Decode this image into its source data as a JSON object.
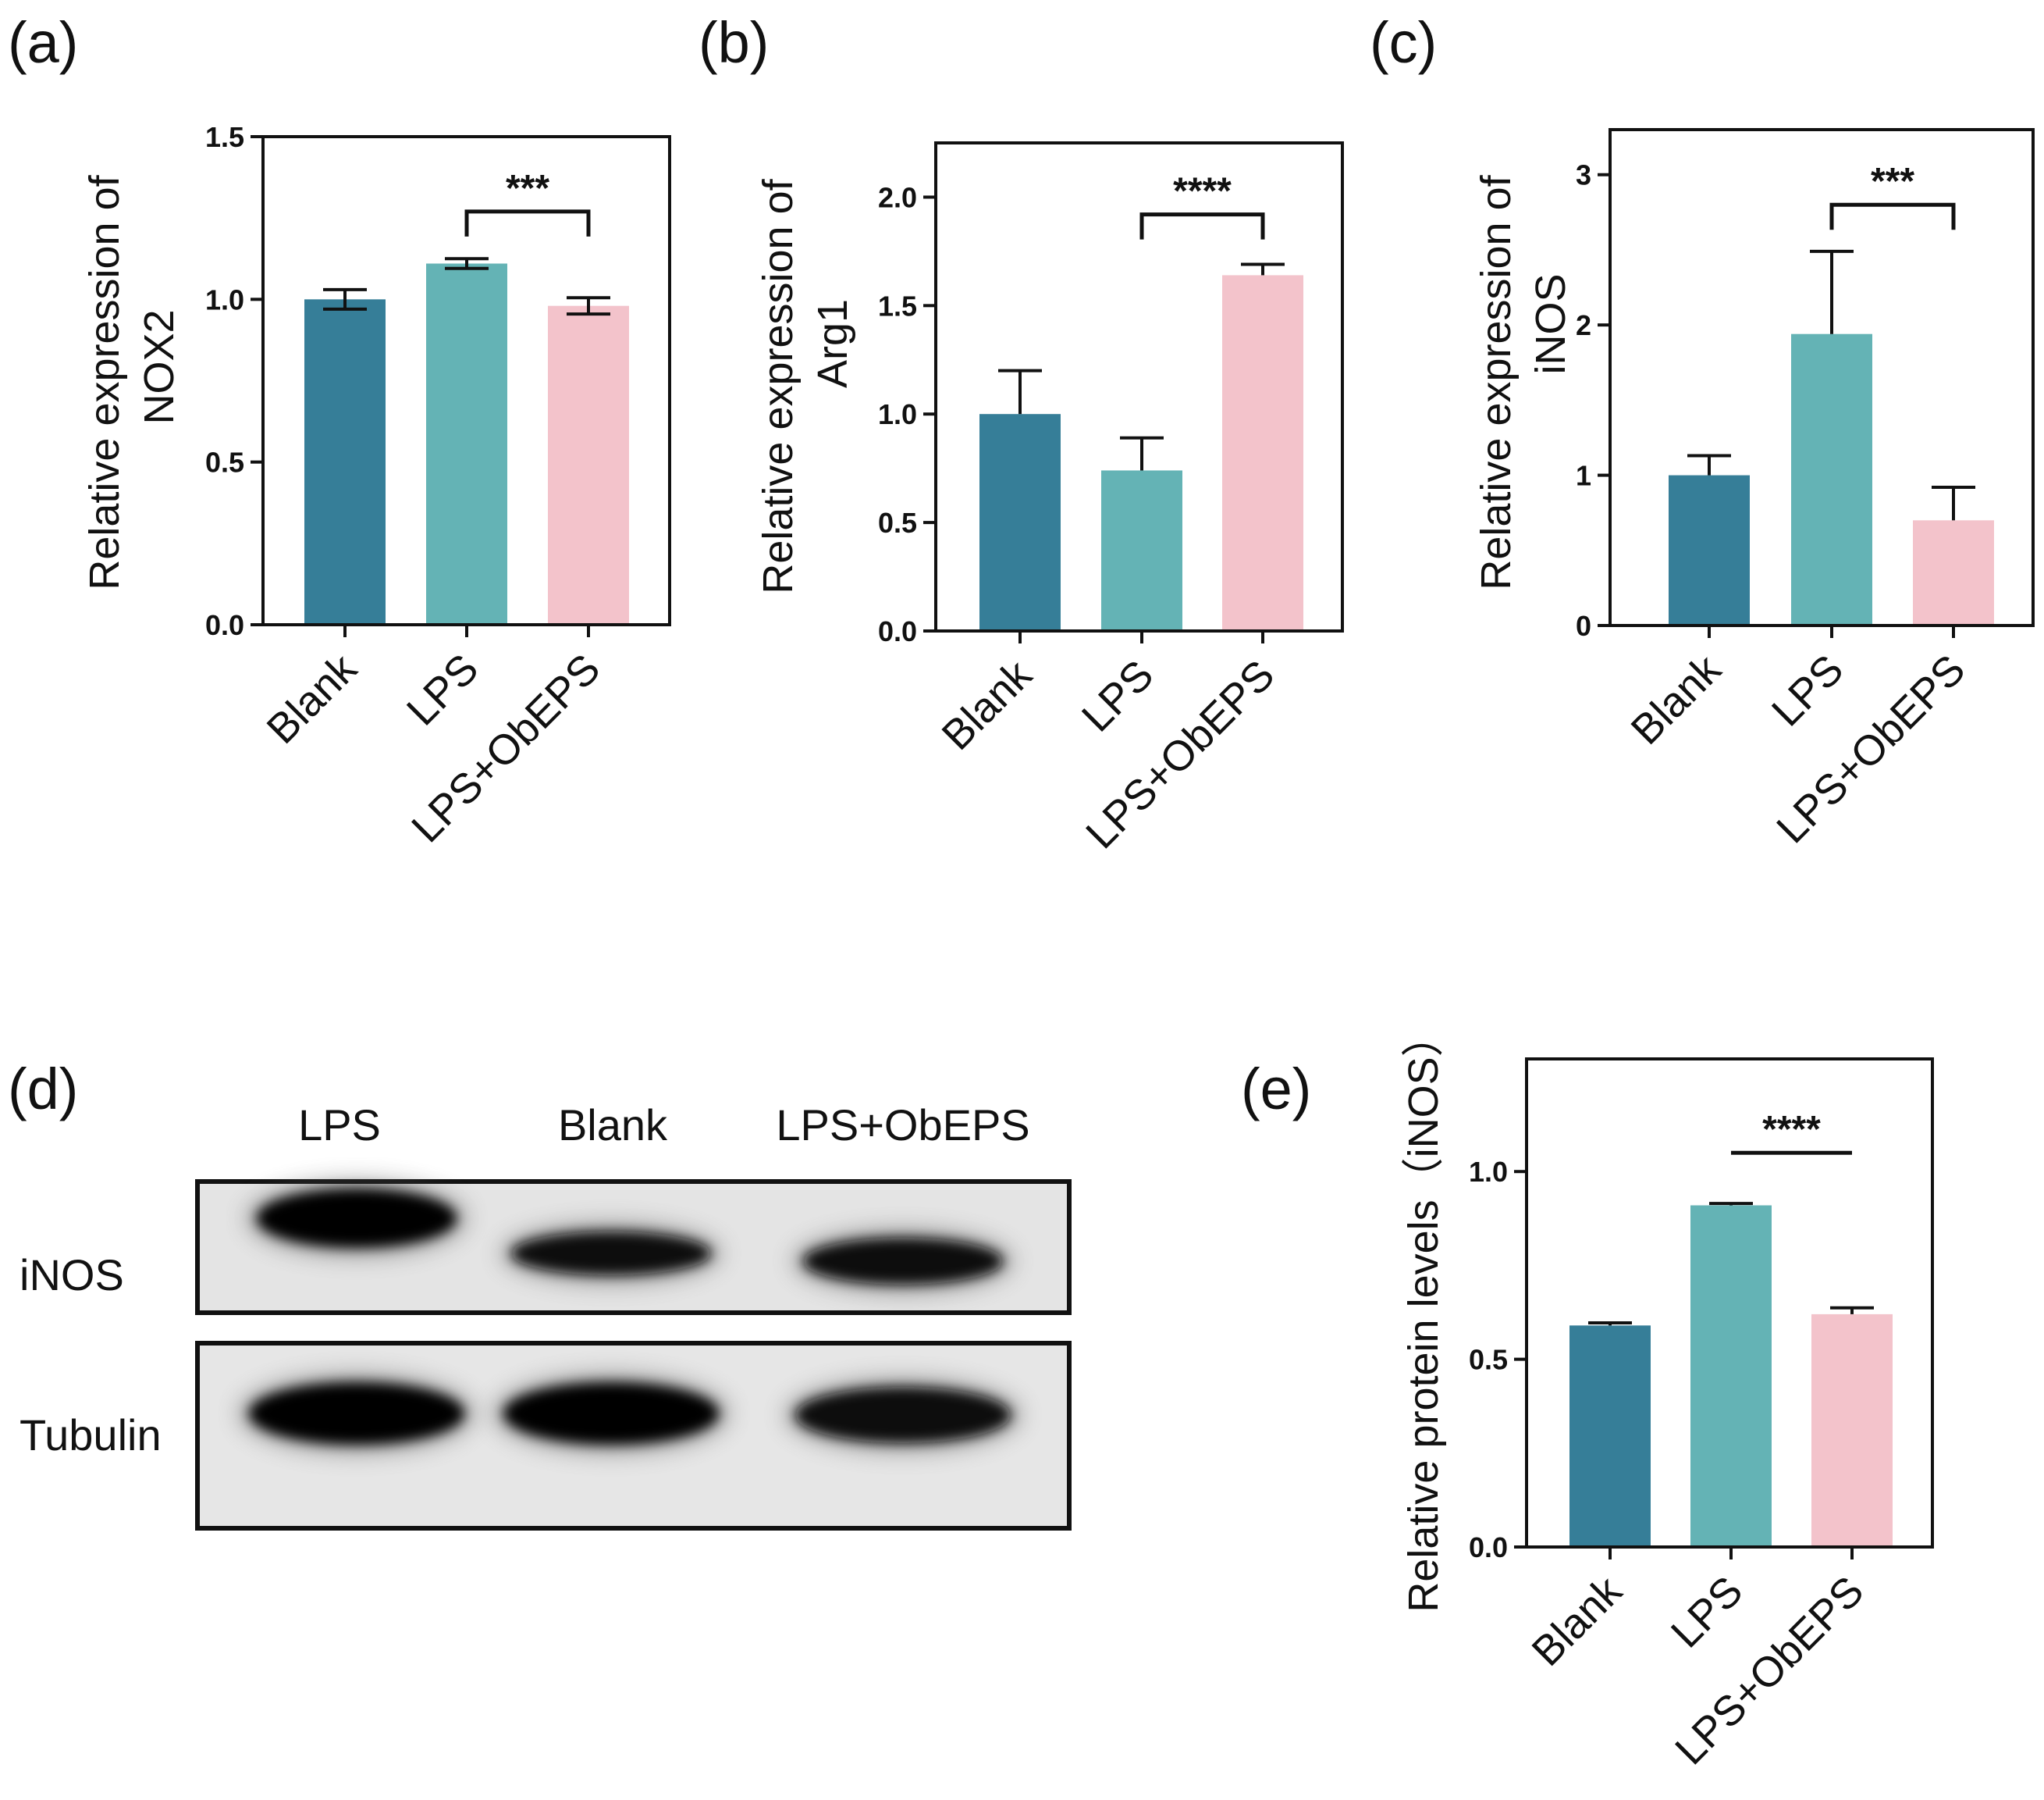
{
  "palette": {
    "blank": "#367e98",
    "lps": "#64b3b5",
    "lps_obeps": "#f3c3cb"
  },
  "chart_data": [
    {
      "id": "a",
      "type": "bar",
      "panel": "(a)",
      "ylabel_lines": [
        "Relative expression of",
        "NOX2"
      ],
      "categories": [
        "Blank",
        "LPS",
        "LPS+ObEPS"
      ],
      "values": [
        1.0,
        1.11,
        0.98
      ],
      "errors": [
        0.03,
        0.015,
        0.025
      ],
      "ylim": [
        0,
        1.5
      ],
      "yticks": [
        0.0,
        0.5,
        1.0,
        1.5
      ],
      "tick_labels": [
        "0.0",
        "0.5",
        "1.0",
        "1.5"
      ],
      "significance": {
        "from": 1,
        "to": 2,
        "label": "***",
        "bracket_y": 1.27,
        "style": "bracket"
      }
    },
    {
      "id": "b",
      "type": "bar",
      "panel": "(b)",
      "ylabel_lines": [
        "Relative expression of",
        "Arg1"
      ],
      "categories": [
        "Blank",
        "LPS",
        "LPS+ObEPS"
      ],
      "values": [
        1.0,
        0.74,
        1.64
      ],
      "errors": [
        0.2,
        0.15,
        0.05
      ],
      "ylim": [
        0,
        2.25
      ],
      "yticks": [
        0.0,
        0.5,
        1.0,
        1.5,
        2.0
      ],
      "tick_labels": [
        "0.0",
        "0.5",
        "1.0",
        "1.5",
        "2.0"
      ],
      "significance": {
        "from": 1,
        "to": 2,
        "label": "****",
        "bracket_y": 1.92,
        "style": "bracket"
      }
    },
    {
      "id": "c",
      "type": "bar",
      "panel": "(c)",
      "ylabel_lines": [
        "Relative expression of",
        "iNOS"
      ],
      "categories": [
        "Blank",
        "LPS",
        "LPS+ObEPS"
      ],
      "values": [
        1.0,
        1.94,
        0.7
      ],
      "errors": [
        0.13,
        0.55,
        0.22
      ],
      "ylim": [
        0,
        3.3
      ],
      "yticks": [
        0,
        1,
        2,
        3
      ],
      "tick_labels": [
        "0",
        "1",
        "2",
        "3"
      ],
      "significance": {
        "from": 1,
        "to": 2,
        "label": "***",
        "bracket_y": 2.8,
        "style": "bracket"
      }
    },
    {
      "id": "e",
      "type": "bar",
      "panel": "(e)",
      "ylabel_lines": [
        "Relative protein levels（iNOS）"
      ],
      "categories": [
        "Blank",
        "LPS",
        "LPS+ObEPS"
      ],
      "values": [
        0.59,
        0.91,
        0.62
      ],
      "errors": [
        0.007,
        0.005,
        0.017
      ],
      "ylim": [
        0,
        1.3
      ],
      "yticks": [
        0.0,
        0.5,
        1.0
      ],
      "tick_labels": [
        "0.0",
        "0.5",
        "1.0"
      ],
      "significance": {
        "from": 1,
        "to": 2,
        "label": "****",
        "bracket_y": 1.05,
        "style": "line"
      }
    }
  ],
  "western_blot": {
    "panel": "(d)",
    "lanes": [
      "LPS",
      "Blank",
      "LPS+ObEPS"
    ],
    "rows": [
      {
        "label": "iNOS",
        "intensity": [
          1.0,
          0.75,
          0.8
        ]
      },
      {
        "label": "Tubulin",
        "intensity": [
          1.0,
          1.0,
          0.85
        ]
      }
    ]
  }
}
